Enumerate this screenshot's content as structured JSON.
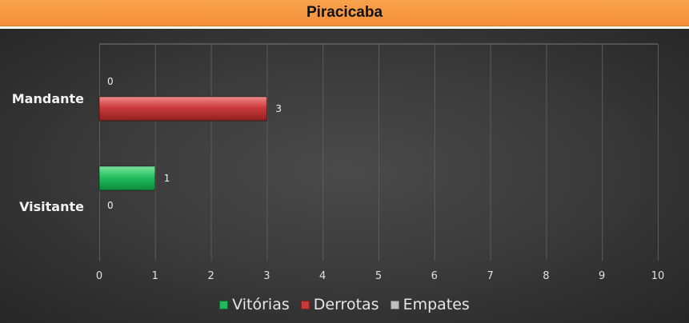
{
  "title": "Piracicaba",
  "colors": {
    "vitorias": "#20b85a",
    "derrotas": "#c83a3a",
    "empates": "#bfbfbf",
    "title_bg": "#f7953f"
  },
  "chart_data": {
    "type": "bar",
    "orientation": "horizontal",
    "title": "Piracicaba",
    "categories": [
      "Mandante",
      "Visitante"
    ],
    "series": [
      {
        "name": "Vitórias",
        "values": [
          0,
          1
        ]
      },
      {
        "name": "Derrotas",
        "values": [
          3,
          0
        ]
      },
      {
        "name": "Empates",
        "values": [
          0,
          0
        ]
      }
    ],
    "data_labels": [
      {
        "category": "Mandante",
        "labels": [
          "0",
          "3"
        ]
      },
      {
        "category": "Visitante",
        "labels": [
          "1",
          "0"
        ]
      }
    ],
    "xlim": [
      0,
      10
    ],
    "x_ticks": [
      "0",
      "1",
      "2",
      "3",
      "4",
      "5",
      "6",
      "7",
      "8",
      "9",
      "10"
    ],
    "grid": true,
    "legend_position": "bottom"
  },
  "legend": {
    "items": [
      {
        "label": "Vitórias",
        "color": "#20b85a"
      },
      {
        "label": "Derrotas",
        "color": "#c83a3a"
      },
      {
        "label": "Empates",
        "color": "#bfbfbf"
      }
    ]
  }
}
